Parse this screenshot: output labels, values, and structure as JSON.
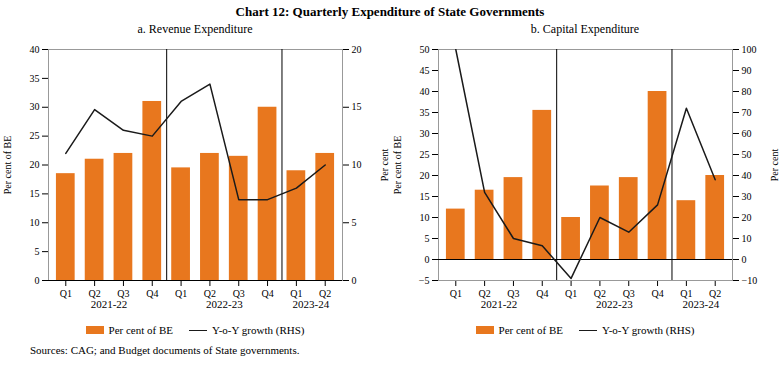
{
  "title": "Chart 12: Quarterly Expenditure of State Governments",
  "caption": "Sources: CAG; and Budget documents of State governments.",
  "chart_data": [
    {
      "type": "bar",
      "title": "a. Revenue Expenditure",
      "categories": [
        "Q1",
        "Q2",
        "Q3",
        "Q4",
        "Q1",
        "Q2",
        "Q3",
        "Q4",
        "Q1",
        "Q2"
      ],
      "groups": [
        "2021-22",
        "2021-22",
        "2021-22",
        "2021-22",
        "2022-23",
        "2022-23",
        "2022-23",
        "2022-23",
        "2023-24",
        "2023-24"
      ],
      "series": [
        {
          "name": "Per cent of BE",
          "type": "bar",
          "color": "#E8771E",
          "values": [
            18.5,
            21.0,
            22.0,
            31.0,
            19.5,
            22.0,
            21.5,
            30.0,
            19.0,
            22.0
          ]
        },
        {
          "name": "Y-o-Y growth (RHS)",
          "type": "line",
          "axis": "y2",
          "color": "#1a1a1a",
          "values": [
            11.0,
            14.8,
            13.0,
            12.5,
            15.5,
            17.0,
            7.0,
            7.0,
            8.0,
            10.0
          ]
        }
      ],
      "ylim": [
        0,
        40
      ],
      "yticks": [
        0,
        5,
        10,
        15,
        20,
        25,
        30,
        35,
        40
      ],
      "y2lim": [
        0,
        20
      ],
      "y2ticks": [
        0,
        5,
        10,
        15,
        20
      ],
      "ylabel": "Per cent of BE",
      "y2label": "Per cent",
      "legend": "bottom",
      "grid": false
    },
    {
      "type": "bar",
      "title": "b. Capital Expenditure",
      "categories": [
        "Q1",
        "Q2",
        "Q3",
        "Q4",
        "Q1",
        "Q2",
        "Q3",
        "Q4",
        "Q1",
        "Q2"
      ],
      "groups": [
        "2021-22",
        "2021-22",
        "2021-22",
        "2021-22",
        "2022-23",
        "2022-23",
        "2022-23",
        "2022-23",
        "2023-24",
        "2023-24"
      ],
      "series": [
        {
          "name": "Per cent of BE",
          "type": "bar",
          "color": "#E8771E",
          "values": [
            12.0,
            16.5,
            19.5,
            35.5,
            10.0,
            17.5,
            19.5,
            40.0,
            14.0,
            20.0
          ]
        },
        {
          "name": "Y-o-Y growth (RHS)",
          "type": "line",
          "axis": "y2",
          "color": "#1a1a1a",
          "values": [
            100.0,
            32.0,
            10.0,
            6.5,
            -9.0,
            20.0,
            13.0,
            26.0,
            72.0,
            38.0
          ]
        }
      ],
      "ylim": [
        -5,
        50
      ],
      "yticks": [
        -5,
        0,
        5,
        10,
        15,
        20,
        25,
        30,
        35,
        40,
        45,
        50
      ],
      "y2lim": [
        -10,
        100
      ],
      "y2ticks": [
        -10,
        0,
        10,
        20,
        30,
        40,
        50,
        60,
        70,
        80,
        90,
        100
      ],
      "ylabel": "Per cent of BE",
      "y2label": "Per cent",
      "legend": "bottom",
      "grid": false
    }
  ]
}
